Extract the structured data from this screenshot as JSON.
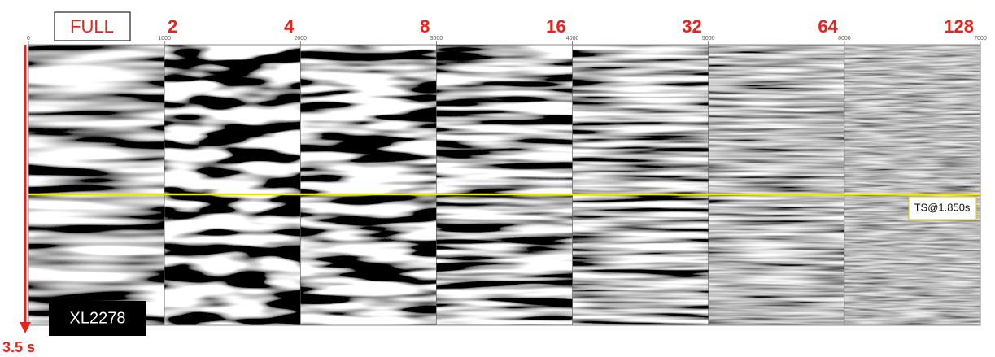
{
  "panels": [
    "FULL",
    2,
    4,
    8,
    16,
    32,
    64,
    128
  ],
  "ticks": [
    0,
    1000,
    2000,
    3000,
    4000,
    5000,
    6000,
    7000
  ],
  "section": "XL2278",
  "marker": "TS@1.850s",
  "depth": "3.5 s"
}
